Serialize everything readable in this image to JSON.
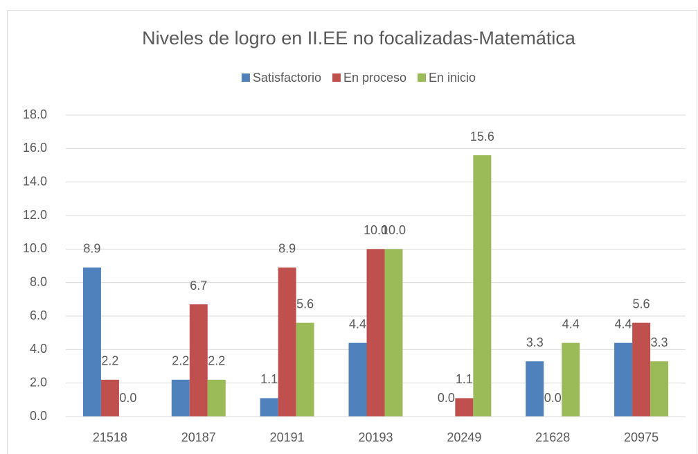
{
  "chart_data": {
    "type": "bar",
    "title": "Niveles de logro en II.EE no focalizadas-Matemática",
    "categories": [
      "21518",
      "20187",
      "20191",
      "20193",
      "20249",
      "21628",
      "20975"
    ],
    "series": [
      {
        "name": "Satisfactorio",
        "color": "#4f81bd",
        "values": [
          8.9,
          2.2,
          1.1,
          4.4,
          0.0,
          3.3,
          4.4
        ],
        "value_labels": [
          "8.9",
          "2.2",
          "1.1",
          "4.4",
          "0.0",
          "3.3",
          "4.4"
        ]
      },
      {
        "name": "En proceso",
        "color": "#c0504d",
        "values": [
          2.2,
          6.7,
          8.9,
          10.0,
          1.1,
          0.0,
          5.6
        ],
        "value_labels": [
          "2.2",
          "6.7",
          "8.9",
          "10.0",
          "1.1",
          "0.0",
          "5.6"
        ]
      },
      {
        "name": "En inicio",
        "color": "#9bbb59",
        "values": [
          0.0,
          2.2,
          5.6,
          10.0,
          15.6,
          4.4,
          3.3
        ],
        "value_labels": [
          "0.0",
          "2.2",
          "5.6",
          "10.0",
          "15.6",
          "4.4",
          "3.3"
        ]
      }
    ],
    "ylim": [
      0,
      18
    ],
    "yticks": [
      {
        "value": 0,
        "label": "0.0"
      },
      {
        "value": 2,
        "label": "2.0"
      },
      {
        "value": 4,
        "label": "4.0"
      },
      {
        "value": 6,
        "label": "6.0"
      },
      {
        "value": 8,
        "label": "8.0"
      },
      {
        "value": 10,
        "label": "10.0"
      },
      {
        "value": 12,
        "label": "12.0"
      },
      {
        "value": 14,
        "label": "14.0"
      },
      {
        "value": 16,
        "label": "16.0"
      },
      {
        "value": 18,
        "label": "18.0"
      }
    ],
    "grid": true,
    "legend": "top"
  }
}
